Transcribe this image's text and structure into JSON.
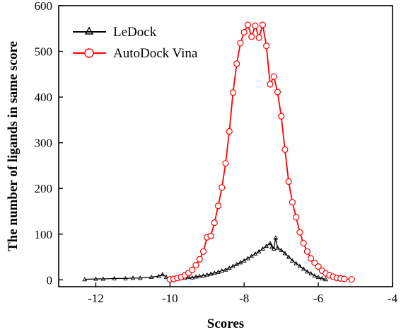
{
  "chart_data": {
    "type": "line",
    "xlabel": "Scores",
    "ylabel": "The number of ligands in same score",
    "xlim": [
      -13,
      -4
    ],
    "ylim": [
      -15,
      600
    ],
    "x_ticks": [
      -12,
      -10,
      -8,
      -6,
      -4
    ],
    "x_tick_labels": [
      "-12",
      "-10",
      "-8",
      "-6",
      "-4"
    ],
    "y_ticks": [
      0,
      100,
      200,
      300,
      400,
      500,
      600
    ],
    "y_tick_labels": [
      "0",
      "100",
      "200",
      "300",
      "400",
      "500",
      "600"
    ],
    "grid": false,
    "legend_position": "top-left",
    "series": [
      {
        "name": "LeDock",
        "color": "#000000",
        "marker": "triangle",
        "x": [
          -12.3,
          -12.0,
          -11.8,
          -11.5,
          -11.2,
          -11.0,
          -10.8,
          -10.5,
          -10.3,
          -10.2,
          -10.1,
          -10.0,
          -9.9,
          -9.8,
          -9.7,
          -9.6,
          -9.5,
          -9.4,
          -9.3,
          -9.2,
          -9.1,
          -9.0,
          -8.9,
          -8.8,
          -8.7,
          -8.6,
          -8.5,
          -8.4,
          -8.3,
          -8.2,
          -8.1,
          -8.0,
          -7.9,
          -7.8,
          -7.7,
          -7.6,
          -7.5,
          -7.4,
          -7.3,
          -7.25,
          -7.2,
          -7.15,
          -7.1,
          -7.0,
          -6.9,
          -6.8,
          -6.7,
          -6.6,
          -6.5,
          -6.4,
          -6.3,
          -6.2,
          -6.1,
          -6.0,
          -5.9,
          -5.8
        ],
        "y": [
          1,
          2,
          2,
          3,
          3,
          4,
          4,
          6,
          8,
          12,
          6,
          4,
          3,
          4,
          5,
          4,
          6,
          5,
          7,
          8,
          9,
          11,
          13,
          15,
          17,
          20,
          22,
          26,
          30,
          34,
          38,
          42,
          47,
          52,
          57,
          62,
          68,
          74,
          80,
          72,
          68,
          92,
          70,
          65,
          58,
          50,
          42,
          36,
          30,
          24,
          18,
          14,
          9,
          6,
          3,
          1
        ]
      },
      {
        "name": "AutoDock Vina",
        "color": "#ff0000",
        "marker": "circle",
        "x": [
          -10.0,
          -9.9,
          -9.8,
          -9.7,
          -9.6,
          -9.5,
          -9.4,
          -9.3,
          -9.2,
          -9.1,
          -9.0,
          -8.9,
          -8.8,
          -8.7,
          -8.6,
          -8.5,
          -8.4,
          -8.3,
          -8.2,
          -8.1,
          -8.0,
          -7.9,
          -7.8,
          -7.7,
          -7.6,
          -7.5,
          -7.4,
          -7.3,
          -7.2,
          -7.1,
          -7.0,
          -6.9,
          -6.8,
          -6.7,
          -6.6,
          -6.5,
          -6.4,
          -6.3,
          -6.2,
          -6.1,
          -6.0,
          -5.9,
          -5.8,
          -5.7,
          -5.6,
          -5.5,
          -5.4,
          -5.3,
          -5.1
        ],
        "y": [
          1,
          2,
          4,
          6,
          10,
          15,
          22,
          32,
          45,
          62,
          93,
          96,
          125,
          162,
          202,
          255,
          325,
          410,
          473,
          518,
          542,
          558,
          532,
          556,
          530,
          558,
          512,
          428,
          445,
          411,
          358,
          285,
          215,
          170,
          137,
          104,
          80,
          62,
          47,
          37,
          29,
          20,
          14,
          10,
          7,
          4,
          3,
          2,
          1
        ]
      }
    ]
  }
}
